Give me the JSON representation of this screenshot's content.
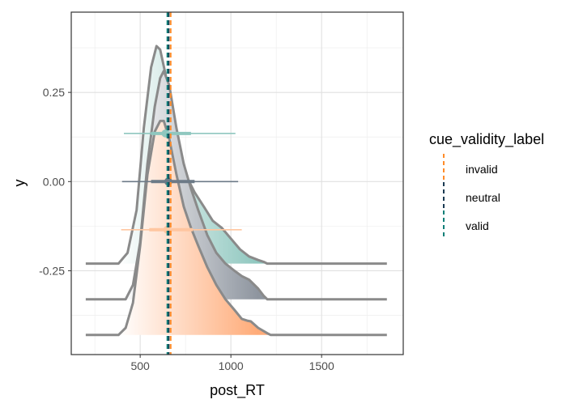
{
  "chart_data": {
    "type": "area",
    "xlabel": "post_RT",
    "ylabel": "y",
    "xlim": [
      120,
      1950
    ],
    "ylim": [
      -0.485,
      0.475
    ],
    "x_ticks": [
      500,
      1000,
      1500
    ],
    "x_tick_labels": [
      "500",
      "1000",
      "1500"
    ],
    "y_ticks": [
      0.25,
      0.0,
      -0.25
    ],
    "y_tick_labels": [
      "0.25",
      "0.00",
      "-0.25"
    ],
    "grid": true,
    "legend": {
      "title": "cue_validity_label",
      "position": "right",
      "entries": [
        {
          "label": "invalid",
          "color": "#ff8c29"
        },
        {
          "label": "neutral",
          "color": "#1a3a52"
        },
        {
          "label": "valid",
          "color": "#0f7f78"
        }
      ]
    },
    "mean_lines": [
      {
        "name": "invalid",
        "x": 668,
        "color": "#ff8c29"
      },
      {
        "name": "neutral",
        "x": 657,
        "color": "#1a3a52"
      },
      {
        "name": "valid",
        "x": 650,
        "color": "#0f7f78"
      }
    ],
    "densities": [
      {
        "name": "valid",
        "baseline": -0.23,
        "fill": "#8fc7bf",
        "x": [
          200,
          380,
          430,
          480,
          520,
          560,
          590,
          610,
          640,
          680,
          720,
          760,
          800,
          850,
          900,
          950,
          1000,
          1050,
          1100,
          1150,
          1180,
          1200,
          1860
        ],
        "height": [
          0,
          0,
          0.03,
          0.15,
          0.38,
          0.55,
          0.61,
          0.6,
          0.53,
          0.4,
          0.31,
          0.24,
          0.2,
          0.16,
          0.12,
          0.1,
          0.07,
          0.04,
          0.02,
          0.01,
          0.005,
          0,
          0
        ]
      },
      {
        "name": "neutral",
        "baseline": -0.33,
        "fill": "#8e959f",
        "x": [
          200,
          420,
          460,
          500,
          540,
          580,
          610,
          630,
          660,
          700,
          740,
          780,
          820,
          870,
          920,
          970,
          1020,
          1060,
          1100,
          1150,
          1180,
          1200,
          1860
        ],
        "height": [
          0,
          0,
          0.04,
          0.16,
          0.38,
          0.54,
          0.62,
          0.64,
          0.6,
          0.48,
          0.38,
          0.31,
          0.25,
          0.18,
          0.13,
          0.1,
          0.08,
          0.065,
          0.055,
          0.03,
          0.01,
          0,
          0
        ]
      },
      {
        "name": "invalid",
        "baseline": -0.43,
        "fill": "#ffab78",
        "x": [
          200,
          380,
          420,
          460,
          500,
          540,
          580,
          610,
          630,
          660,
          700,
          740,
          780,
          820,
          870,
          920,
          970,
          1020,
          1060,
          1090,
          1110,
          1150,
          1200,
          1220,
          1860
        ],
        "height": [
          0,
          0,
          0.02,
          0.09,
          0.25,
          0.45,
          0.57,
          0.6,
          0.6,
          0.55,
          0.45,
          0.36,
          0.3,
          0.25,
          0.19,
          0.14,
          0.1,
          0.07,
          0.045,
          0.04,
          0.038,
          0.02,
          0.005,
          0,
          0
        ]
      }
    ],
    "intervals": [
      {
        "name": "valid",
        "y": 0.135,
        "point": 640,
        "inner": [
          560,
          780
        ],
        "outer": [
          410,
          1025
        ],
        "color": "#8fc7bf"
      },
      {
        "name": "neutral",
        "y": 0.0,
        "point": 655,
        "inner": [
          560,
          800
        ],
        "outer": [
          400,
          1040
        ],
        "color": "#6c7a87"
      },
      {
        "name": "invalid",
        "y": -0.135,
        "point": 650,
        "inner": [
          550,
          790
        ],
        "outer": [
          395,
          1060
        ],
        "color": "#ffc6a0"
      }
    ]
  }
}
